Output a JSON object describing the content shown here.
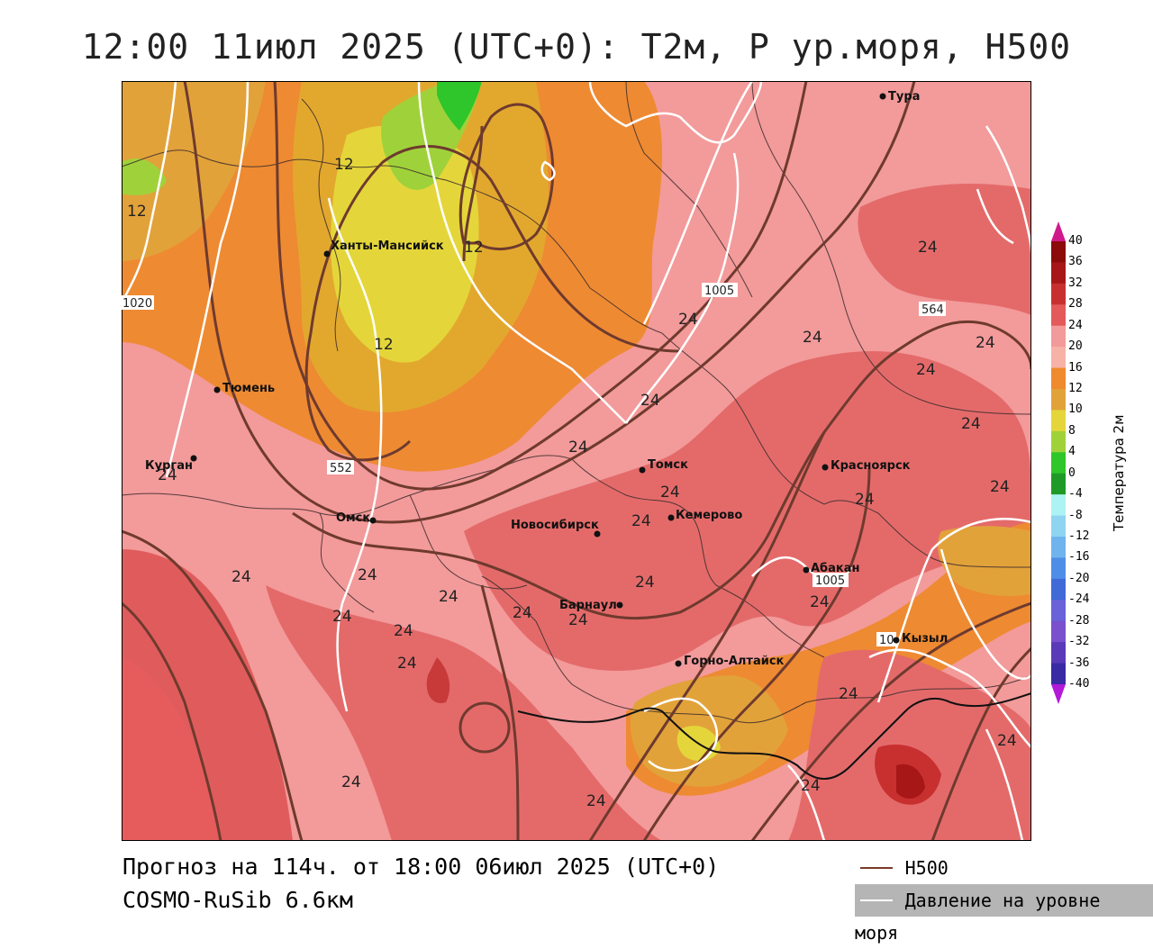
{
  "title": "12:00 11июл 2025 (UTC+0): T2м, P ур.моря, H500",
  "footer": {
    "forecast": "Прогноз на 114ч. от 18:00 06июл 2025 (UTC+0)",
    "model": "COSMO-RuSib 6.6км"
  },
  "legend": {
    "title": "Температура 2м",
    "ticks": [
      "40",
      "36",
      "32",
      "28",
      "24",
      "20",
      "16",
      "12",
      "10",
      "8",
      "4",
      "0",
      "-4",
      "-8",
      "-12",
      "-16",
      "-20",
      "-24",
      "-28",
      "-32",
      "-36",
      "-40"
    ],
    "colors": [
      "#8b0a0a",
      "#a81717",
      "#c83030",
      "#e45a5a",
      "#f39a9a",
      "#f7b2a8",
      "#ef8a2e",
      "#e2a23a",
      "#e4d63a",
      "#9fd23a",
      "#2ec62a",
      "#1f9a28",
      "#aef3f3",
      "#8fd4f0",
      "#6fb4ec",
      "#4f8ee6",
      "#3f6ad8",
      "#6a62d8",
      "#7a50cc",
      "#5a3ab8",
      "#3a2aa4",
      "#221a90"
    ],
    "arrow_top_color": "#d01a8c",
    "arrow_bottom_color": "#b21ad8"
  },
  "key": {
    "h500_label": "H500",
    "h500_color": "#7b3a2a",
    "pressure_label": "Давление на уровне моря",
    "pressure_color": "#ffffff"
  },
  "map": {
    "cities": [
      {
        "name": "Тура"
      },
      {
        "name": "Ханты-Мансийск"
      },
      {
        "name": "Тюмень"
      },
      {
        "name": "Курган"
      },
      {
        "name": "Омск"
      },
      {
        "name": "Томск"
      },
      {
        "name": "Новосибирск"
      },
      {
        "name": "Кемерово"
      },
      {
        "name": "Красноярск"
      },
      {
        "name": "Абакан"
      },
      {
        "name": "Барнаул"
      },
      {
        "name": "Горно-Алтайск"
      },
      {
        "name": "Кызыл"
      }
    ],
    "temperature_labels": [
      "12",
      "12",
      "12",
      "12",
      "24",
      "24",
      "24",
      "24",
      "24",
      "24",
      "24",
      "24",
      "24",
      "24",
      "24",
      "24",
      "24",
      "24",
      "24",
      "24",
      "24",
      "24",
      "24",
      "24",
      "24",
      "24",
      "24",
      "24",
      "24",
      "24",
      "24",
      "24"
    ],
    "h500_boxes": [
      "552",
      "564"
    ],
    "pressure_boxes": [
      "1020",
      "1005",
      "1005",
      "10"
    ]
  }
}
